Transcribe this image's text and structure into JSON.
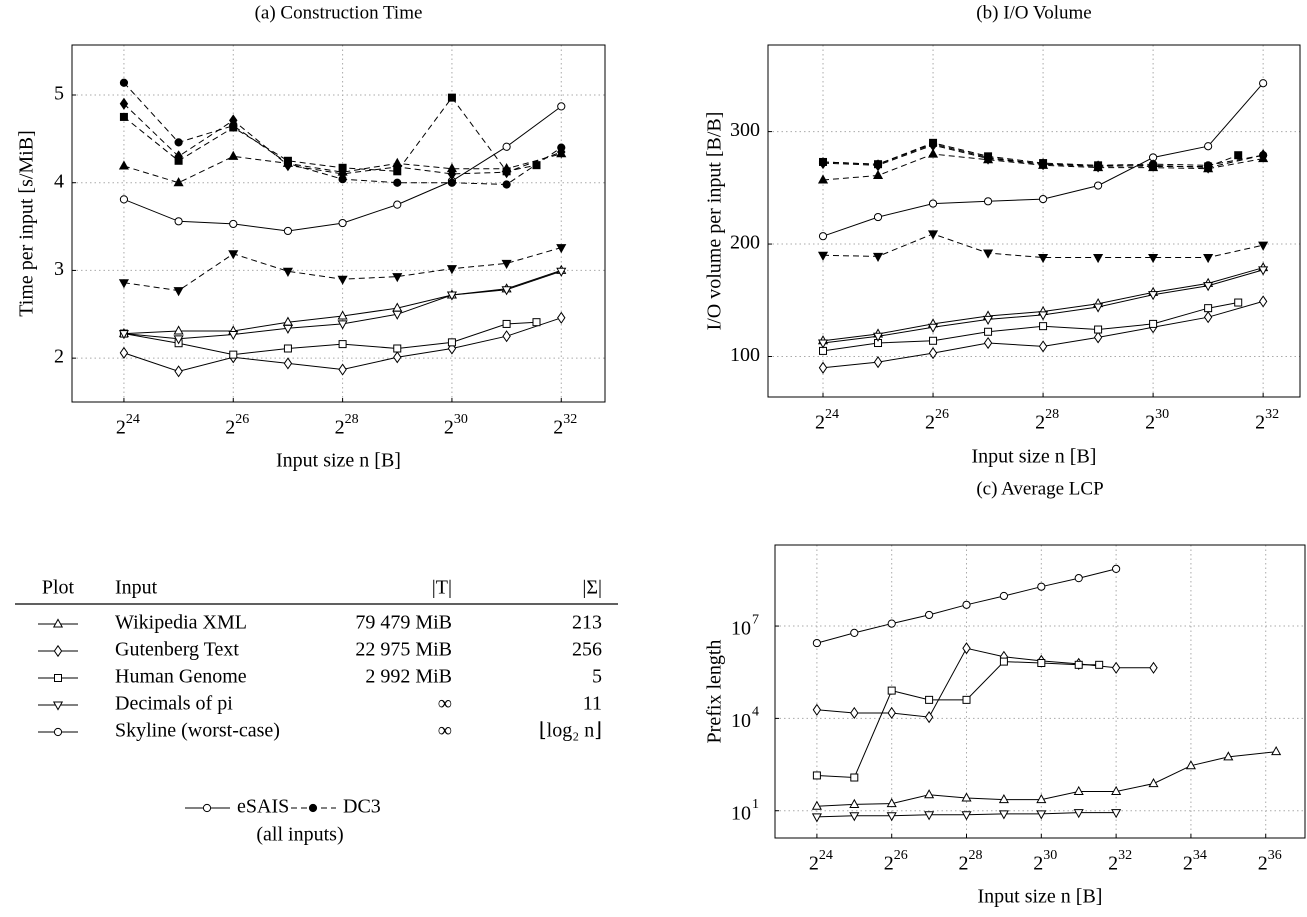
{
  "chart_data": [
    {
      "type": "line",
      "title": "(a) Construction Time",
      "xlabel": "Input size n [B]",
      "ylabel": "Time per input [s/MiB]",
      "xscale": "log2",
      "yscale": "linear",
      "grid": true,
      "xlim": [
        8684700,
        7478000000
      ],
      "ylim": [
        1.5,
        5.57
      ],
      "xticks": [
        {
          "value": 16777216,
          "label": "2",
          "sup": "24"
        },
        {
          "value": 67108864,
          "label": "2",
          "sup": "26"
        },
        {
          "value": 268435456,
          "label": "2",
          "sup": "28"
        },
        {
          "value": 1073741824,
          "label": "2",
          "sup": "30"
        },
        {
          "value": 4294967296,
          "label": "2",
          "sup": "32"
        }
      ],
      "yticks": [
        2,
        3,
        4,
        5
      ],
      "series": [
        {
          "marker": "triangle",
          "filled": false,
          "line": "solid",
          "color": "#000000",
          "x": [
            16777216,
            33554432,
            67108864,
            134217728,
            268435456,
            536870912,
            1073741824,
            2147483648,
            4294967296
          ],
          "values": [
            2.28,
            2.31,
            2.31,
            2.41,
            2.48,
            2.57,
            2.72,
            2.79,
            3.0
          ]
        },
        {
          "marker": "diamond",
          "filled": false,
          "line": "solid",
          "color": "#000000",
          "x": [
            16777216,
            33554432,
            67108864,
            134217728,
            268435456,
            536870912,
            1073741824,
            2147483648,
            4294967296
          ],
          "values": [
            2.06,
            1.85,
            2.01,
            1.94,
            1.87,
            2.01,
            2.11,
            2.25,
            2.46
          ]
        },
        {
          "marker": "square",
          "filled": false,
          "line": "solid",
          "color": "#000000",
          "x": [
            16777216,
            33554432,
            67108864,
            134217728,
            268435456,
            536870912,
            1073741824,
            2147483648,
            3137339392
          ],
          "values": [
            2.28,
            2.17,
            2.04,
            2.11,
            2.16,
            2.11,
            2.18,
            2.39,
            2.41
          ]
        },
        {
          "marker": "down-triangle",
          "filled": false,
          "line": "solid",
          "color": "#000000",
          "x": [
            16777216,
            33554432,
            67108864,
            134217728,
            268435456,
            536870912,
            1073741824,
            2147483648,
            4294967296
          ],
          "values": [
            2.28,
            2.22,
            2.27,
            2.34,
            2.39,
            2.5,
            2.72,
            2.78,
            2.99
          ]
        },
        {
          "marker": "circle",
          "filled": false,
          "line": "solid",
          "color": "#000000",
          "x": [
            16777216,
            33554432,
            67108864,
            134217728,
            268435456,
            536870912,
            1073741824,
            2147483648,
            4294967296
          ],
          "values": [
            3.81,
            3.56,
            3.53,
            3.45,
            3.54,
            3.75,
            4.02,
            4.41,
            4.87
          ]
        },
        {
          "marker": "triangle",
          "filled": true,
          "line": "dashed",
          "color": "#000000",
          "x": [
            16777216,
            33554432,
            67108864,
            134217728,
            268435456,
            536870912,
            1073741824,
            2147483648,
            4294967296
          ],
          "values": [
            4.19,
            4.0,
            4.3,
            4.22,
            4.12,
            4.22,
            4.16,
            4.16,
            4.33
          ]
        },
        {
          "marker": "diamond",
          "filled": true,
          "line": "dashed",
          "color": "#000000",
          "x": [
            16777216,
            33554432,
            67108864,
            134217728,
            268435456,
            536870912,
            1073741824,
            2147483648,
            4294967296
          ],
          "values": [
            4.9,
            4.3,
            4.71,
            4.2,
            4.1,
            4.18,
            4.1,
            4.12,
            4.35
          ]
        },
        {
          "marker": "square",
          "filled": true,
          "line": "dashed",
          "color": "#000000",
          "x": [
            16777216,
            33554432,
            67108864,
            134217728,
            268435456,
            536870912,
            1073741824,
            2147483648,
            3137339392
          ],
          "values": [
            4.75,
            4.25,
            4.63,
            4.25,
            4.17,
            4.13,
            4.97,
            4.13,
            4.2
          ]
        },
        {
          "marker": "down-triangle",
          "filled": true,
          "line": "dashed",
          "color": "#000000",
          "x": [
            16777216,
            33554432,
            67108864,
            134217728,
            268435456,
            536870912,
            1073741824,
            2147483648,
            4294967296
          ],
          "values": [
            2.86,
            2.77,
            3.19,
            2.99,
            2.9,
            2.93,
            3.02,
            3.08,
            3.26
          ]
        },
        {
          "marker": "circle",
          "filled": true,
          "line": "dashed",
          "color": "#000000",
          "x": [
            16777216,
            33554432,
            67108864,
            134217728,
            268435456,
            536870912,
            1073741824,
            2147483648,
            4294967296
          ],
          "values": [
            5.14,
            4.46,
            4.65,
            4.22,
            4.04,
            4.0,
            4.0,
            3.98,
            4.4
          ]
        }
      ]
    },
    {
      "type": "line",
      "title": "(b) I/O Volume",
      "xlabel": "Input size n [B]",
      "ylabel": "I/O volume per input [B/B]",
      "xscale": "log2",
      "yscale": "linear",
      "grid": true,
      "xlim": [
        8388608,
        6834000000
      ],
      "ylim": [
        64,
        377
      ],
      "xticks": [
        {
          "value": 16777216,
          "label": "2",
          "sup": "24"
        },
        {
          "value": 67108864,
          "label": "2",
          "sup": "26"
        },
        {
          "value": 268435456,
          "label": "2",
          "sup": "28"
        },
        {
          "value": 1073741824,
          "label": "2",
          "sup": "30"
        },
        {
          "value": 4294967296,
          "label": "2",
          "sup": "32"
        }
      ],
      "yticks": [
        100,
        200,
        300
      ],
      "series": [
        {
          "marker": "triangle",
          "filled": false,
          "line": "solid",
          "color": "#000000",
          "x": [
            16777216,
            33554432,
            67108864,
            134217728,
            268435456,
            536870912,
            1073741824,
            2147483648,
            4294967296
          ],
          "values": [
            114,
            120,
            129,
            136,
            140,
            147,
            157,
            165,
            179
          ]
        },
        {
          "marker": "diamond",
          "filled": false,
          "line": "solid",
          "color": "#000000",
          "x": [
            16777216,
            33554432,
            67108864,
            134217728,
            268435456,
            536870912,
            1073741824,
            2147483648,
            4294967296
          ],
          "values": [
            90,
            95,
            103,
            112,
            109,
            117,
            126,
            135,
            149
          ]
        },
        {
          "marker": "square",
          "filled": false,
          "line": "solid",
          "color": "#000000",
          "x": [
            16777216,
            33554432,
            67108864,
            134217728,
            268435456,
            536870912,
            1073741824,
            2147483648,
            3137339392
          ],
          "values": [
            105,
            112,
            114,
            122,
            127,
            124,
            129,
            143,
            148
          ]
        },
        {
          "marker": "down-triangle",
          "filled": false,
          "line": "solid",
          "color": "#000000",
          "x": [
            16777216,
            33554432,
            67108864,
            134217728,
            268435456,
            536870912,
            1073741824,
            2147483648,
            4294967296
          ],
          "values": [
            112,
            118,
            126,
            133,
            137,
            144,
            155,
            163,
            177
          ]
        },
        {
          "marker": "circle",
          "filled": false,
          "line": "solid",
          "color": "#000000",
          "x": [
            16777216,
            33554432,
            67108864,
            134217728,
            268435456,
            536870912,
            1073741824,
            2147483648,
            4294967296
          ],
          "values": [
            207,
            224,
            236,
            238,
            240,
            252,
            277,
            287,
            343
          ]
        },
        {
          "marker": "triangle",
          "filled": true,
          "line": "dashed",
          "color": "#000000",
          "x": [
            16777216,
            33554432,
            67108864,
            134217728,
            268435456,
            536870912,
            1073741824,
            2147483648,
            4294967296
          ],
          "values": [
            257,
            261,
            280,
            275,
            270,
            268,
            268,
            267,
            276
          ]
        },
        {
          "marker": "diamond",
          "filled": true,
          "line": "dashed",
          "color": "#000000",
          "x": [
            16777216,
            33554432,
            67108864,
            134217728,
            268435456,
            536870912,
            1073741824,
            2147483648,
            4294967296
          ],
          "values": [
            272,
            270,
            288,
            276,
            271,
            269,
            270,
            268,
            279
          ]
        },
        {
          "marker": "square",
          "filled": true,
          "line": "dashed",
          "color": "#000000",
          "x": [
            16777216,
            33554432,
            67108864,
            134217728,
            268435456,
            536870912,
            1073741824,
            2147483648,
            3137339392
          ],
          "values": [
            273,
            271,
            290,
            278,
            272,
            270,
            269,
            269,
            279
          ]
        },
        {
          "marker": "down-triangle",
          "filled": true,
          "line": "dashed",
          "color": "#000000",
          "x": [
            16777216,
            33554432,
            67108864,
            134217728,
            268435456,
            536870912,
            1073741824,
            2147483648,
            4294967296
          ],
          "values": [
            190,
            189,
            209,
            192,
            188,
            188,
            188,
            188,
            199
          ]
        },
        {
          "marker": "circle",
          "filled": true,
          "line": "dashed",
          "color": "#000000",
          "x": [
            16777216,
            33554432,
            67108864,
            134217728,
            268435456,
            536870912,
            1073741824,
            2147483648,
            4294967296
          ],
          "values": [
            273,
            271,
            289,
            277,
            271,
            270,
            271,
            270,
            279
          ]
        }
      ]
    },
    {
      "type": "line",
      "title": "(c) Average LCP",
      "xlabel": "Input size n [B]",
      "ylabel": "Prefix length",
      "xscale": "log2",
      "yscale": "log",
      "grid": true,
      "xlim": [
        7718000,
        142290000000
      ],
      "ylim": [
        1.3,
        4300000000
      ],
      "xticks": [
        {
          "value": 16777216,
          "label": "2",
          "sup": "24"
        },
        {
          "value": 67108864,
          "label": "2",
          "sup": "26"
        },
        {
          "value": 268435456,
          "label": "2",
          "sup": "28"
        },
        {
          "value": 1073741824,
          "label": "2",
          "sup": "30"
        },
        {
          "value": 4294967296,
          "label": "2",
          "sup": "32"
        },
        {
          "value": 17179869184,
          "label": "2",
          "sup": "34"
        },
        {
          "value": 68719476736,
          "label": "2",
          "sup": "36"
        }
      ],
      "yticks": [
        {
          "value": 10,
          "label": "10",
          "sup": "1"
        },
        {
          "value": 10000,
          "label": "10",
          "sup": "4"
        },
        {
          "value": 10000000,
          "label": "10",
          "sup": "7"
        }
      ],
      "series": [
        {
          "marker": "circle",
          "filled": false,
          "line": "solid",
          "color": "#000000",
          "x": [
            16777216,
            33554432,
            67108864,
            134217728,
            268435456,
            536870912,
            1073741824,
            2147483648,
            4294967296
          ],
          "values": [
            2800000,
            6000000,
            12000000,
            23000000,
            49000000,
            95000000,
            190000000,
            360000000,
            720000000
          ]
        },
        {
          "marker": "diamond",
          "filled": false,
          "line": "solid",
          "color": "#000000",
          "x": [
            16777216,
            33554432,
            67108864,
            134217728,
            268435456,
            536870912,
            1073741824,
            2147483648,
            4294967296,
            8589934592
          ],
          "values": [
            19000,
            15000,
            15000,
            11000,
            1900000,
            1000000,
            740000,
            590000,
            440000,
            440000
          ]
        },
        {
          "marker": "square",
          "filled": false,
          "line": "solid",
          "color": "#000000",
          "x": [
            16777216,
            33554432,
            67108864,
            134217728,
            268435456,
            536870912,
            1073741824,
            2147483648,
            3137339392
          ],
          "values": [
            140,
            120,
            80000,
            40000,
            40000,
            700000,
            630000,
            550000,
            550000
          ]
        },
        {
          "marker": "triangle",
          "filled": false,
          "line": "solid",
          "color": "#000000",
          "x": [
            16777216,
            33554432,
            67108864,
            134217728,
            268435456,
            536870912,
            1073741824,
            2147483648,
            4294967296,
            8589934592,
            17179869184,
            34359738368,
            83339771904
          ],
          "values": [
            14,
            16,
            17,
            33,
            26,
            23,
            23,
            42,
            42,
            76,
            290,
            560,
            830
          ]
        },
        {
          "marker": "down-triangle",
          "filled": false,
          "line": "solid",
          "color": "#000000",
          "x": [
            16777216,
            33554432,
            67108864,
            134217728,
            268435456,
            536870912,
            1073741824,
            2147483648,
            4294967296
          ],
          "values": [
            6.3,
            6.9,
            6.9,
            7.4,
            7.4,
            7.9,
            7.9,
            8.7,
            8.7
          ]
        }
      ]
    }
  ],
  "legend_table": {
    "header": [
      "Plot",
      "Input",
      "|T|",
      "|Σ|"
    ],
    "rows": [
      {
        "marker": "triangle",
        "input": "Wikipedia XML",
        "size": "79 479 MiB",
        "alphabet": "213"
      },
      {
        "marker": "diamond",
        "input": "Gutenberg Text",
        "size": "22 975 MiB",
        "alphabet": "256"
      },
      {
        "marker": "square",
        "input": "Human Genome",
        "size": "2 992 MiB",
        "alphabet": "5"
      },
      {
        "marker": "down-triangle",
        "input": "Decimals of pi",
        "size": "∞",
        "alphabet": "11"
      },
      {
        "marker": "circle",
        "input": "Skyline (worst-case)",
        "size": "∞",
        "alphabet": "⌊log₂ n⌋"
      }
    ]
  },
  "algorithm_legend": {
    "items": [
      {
        "name": "eSAIS",
        "line": "solid",
        "filled": false
      },
      {
        "name": "DC3",
        "line": "dashed",
        "filled": true
      }
    ],
    "note": "(all inputs)"
  }
}
